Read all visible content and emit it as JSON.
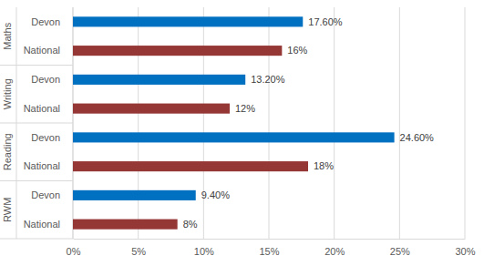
{
  "chart_data": {
    "type": "bar",
    "orientation": "horizontal",
    "categories": [
      "Maths",
      "Writing",
      "Reading",
      "RWM"
    ],
    "series": [
      {
        "name": "Devon",
        "color": "#0070c0",
        "values": [
          17.6,
          13.2,
          24.6,
          9.4
        ],
        "value_labels": [
          "17.60%",
          "13.20%",
          "24.60%",
          "9.40%"
        ]
      },
      {
        "name": "National",
        "color": "#953735",
        "values": [
          16,
          12,
          18,
          8
        ],
        "value_labels": [
          "16%",
          "12%",
          "18%",
          "8%"
        ]
      }
    ],
    "xlim": [
      0,
      30
    ],
    "xticks": [
      {
        "value": 0,
        "label": "0%"
      },
      {
        "value": 5,
        "label": "5%"
      },
      {
        "value": 10,
        "label": "10%"
      },
      {
        "value": 15,
        "label": "15%"
      },
      {
        "value": 20,
        "label": "20%"
      },
      {
        "value": 25,
        "label": "25%"
      },
      {
        "value": 30,
        "label": "30%"
      }
    ],
    "grid": true,
    "data_labels": true
  }
}
